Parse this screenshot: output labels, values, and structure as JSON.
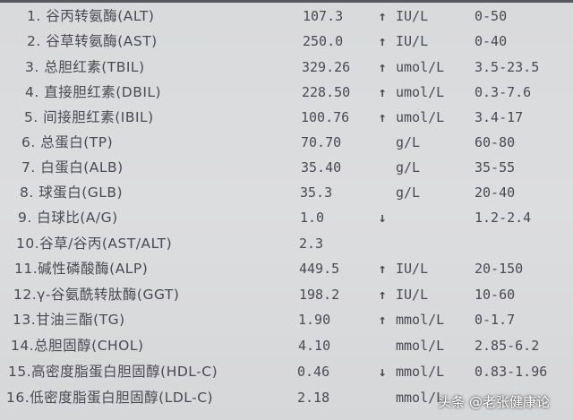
{
  "rows": [
    {
      "name": "1. 谷丙转氨酶(ALT)",
      "value": "107.3",
      "flag": "↑",
      "unit": "IU/L",
      "range": "0-50"
    },
    {
      "name": "2. 谷草转氨酶(AST)",
      "value": "250.0",
      "flag": "↑",
      "unit": "IU/L",
      "range": "0-40"
    },
    {
      "name": "3. 总胆红素(TBIL)",
      "value": "329.26",
      "flag": "↑",
      "unit": "umol/L",
      "range": "3.5-23.5"
    },
    {
      "name": "4. 直接胆红素(DBIL)",
      "value": "228.50",
      "flag": "↑",
      "unit": "umol/L",
      "range": "0.3-7.6"
    },
    {
      "name": "5. 间接胆红素(IBIL)",
      "value": "100.76",
      "flag": "↑",
      "unit": "umol/L",
      "range": "3.4-17"
    },
    {
      "name": "6. 总蛋白(TP)",
      "value": "70.70",
      "flag": "",
      "unit": "g/L",
      "range": "60-80"
    },
    {
      "name": "7. 白蛋白(ALB)",
      "value": "35.40",
      "flag": "",
      "unit": "g/L",
      "range": "35-55"
    },
    {
      "name": "8. 球蛋白(GLB)",
      "value": "35.3",
      "flag": "",
      "unit": "g/L",
      "range": "20-40"
    },
    {
      "name": "9. 白球比(A/G)",
      "value": "1.0",
      "flag": "↓",
      "unit": "",
      "range": "1.2-2.4"
    },
    {
      "name": "10.谷草/谷丙(AST/ALT)",
      "value": "2.3",
      "flag": "",
      "unit": "",
      "range": ""
    },
    {
      "name": "11.碱性磷酸酶(ALP)",
      "value": "449.5",
      "flag": "↑",
      "unit": "IU/L",
      "range": "20-150"
    },
    {
      "name": "12.γ-谷氨酰转肽酶(GGT)",
      "value": "198.2",
      "flag": "↑",
      "unit": "IU/L",
      "range": "10-60"
    },
    {
      "name": "13.甘油三酯(TG)",
      "value": "1.90",
      "flag": "↑",
      "unit": "mmol/L",
      "range": "0-1.7"
    },
    {
      "name": "14.总胆固醇(CHOL)",
      "value": "4.10",
      "flag": "",
      "unit": "mmol/L",
      "range": "2.85-6.2"
    },
    {
      "name": "15.高密度脂蛋白胆固醇(HDL-C)",
      "value": "0.46",
      "flag": "↓",
      "unit": "mmol/L",
      "range": "0.83-1.96"
    },
    {
      "name": "16.低密度脂蛋白胆固醇(LDL-C)",
      "value": "2.18",
      "flag": "",
      "unit": "mmol/L",
      "range": ""
    }
  ],
  "watermark": "头条 @老张健康论"
}
